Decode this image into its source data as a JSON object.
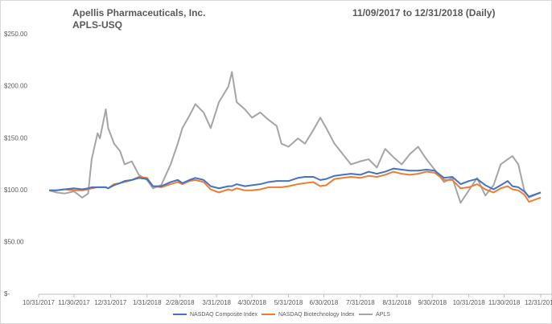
{
  "chart_data": {
    "type": "line",
    "title": "Apellis Pharmaceuticals, Inc.",
    "subtitle": "APLS-USQ",
    "date_range": "11/09/2017 to 12/31/2018 (Daily)",
    "x": [
      "2017-11-09",
      "2017-11-15",
      "2017-11-22",
      "2017-11-30",
      "2017-12-07",
      "2017-12-12",
      "2017-12-15",
      "2017-12-20",
      "2017-12-22",
      "2017-12-27",
      "2017-12-29",
      "2018-01-03",
      "2018-01-08",
      "2018-01-12",
      "2018-01-18",
      "2018-01-24",
      "2018-01-31",
      "2018-02-05",
      "2018-02-12",
      "2018-02-20",
      "2018-02-26",
      "2018-03-02",
      "2018-03-08",
      "2018-03-13",
      "2018-03-20",
      "2018-03-26",
      "2018-04-02",
      "2018-04-10",
      "2018-04-13",
      "2018-04-17",
      "2018-04-24",
      "2018-04-30",
      "2018-05-07",
      "2018-05-14",
      "2018-05-21",
      "2018-05-25",
      "2018-05-31",
      "2018-06-08",
      "2018-06-14",
      "2018-06-21",
      "2018-06-27",
      "2018-07-02",
      "2018-07-09",
      "2018-07-16",
      "2018-07-23",
      "2018-07-31",
      "2018-08-07",
      "2018-08-14",
      "2018-08-21",
      "2018-08-28",
      "2018-09-04",
      "2018-09-11",
      "2018-09-18",
      "2018-09-25",
      "2018-10-02",
      "2018-10-10",
      "2018-10-17",
      "2018-10-24",
      "2018-10-31",
      "2018-11-07",
      "2018-11-14",
      "2018-11-21",
      "2018-11-27",
      "2018-12-03",
      "2018-12-07",
      "2018-12-12",
      "2018-12-17",
      "2018-12-21",
      "2018-12-31"
    ],
    "series": [
      {
        "name": "NASDAQ Composite Index",
        "color": "#4472c4",
        "values": [
          100,
          100,
          101,
          102,
          101,
          102,
          103,
          103,
          103,
          103,
          102,
          105,
          107,
          109,
          110,
          112,
          111,
          104,
          104,
          108,
          110,
          107,
          110,
          112,
          110,
          104,
          102,
          104,
          104,
          106,
          104,
          105,
          106,
          108,
          109,
          109,
          109,
          112,
          113,
          113,
          110,
          111,
          114,
          115,
          116,
          115,
          118,
          116,
          118,
          121,
          120,
          119,
          119,
          120,
          119,
          112,
          113,
          106,
          109,
          111,
          105,
          101,
          105,
          109,
          104,
          103,
          99,
          94,
          98
        ]
      },
      {
        "name": "NASDAQ Biotechnology Index",
        "color": "#ed7d31",
        "values": [
          100,
          100,
          101,
          100,
          100,
          101,
          102,
          103,
          103,
          103,
          102,
          106,
          107,
          108,
          110,
          113,
          112,
          104,
          103,
          106,
          108,
          106,
          109,
          110,
          108,
          101,
          98,
          101,
          100,
          102,
          100,
          100,
          101,
          103,
          103,
          103,
          104,
          106,
          107,
          108,
          104,
          105,
          111,
          112,
          113,
          112,
          114,
          113,
          115,
          118,
          116,
          115,
          116,
          118,
          117,
          110,
          110,
          102,
          103,
          106,
          101,
          98,
          102,
          104,
          101,
          100,
          96,
          89,
          93
        ]
      },
      {
        "name": "APLS",
        "color": "#a5a5a5",
        "values": [
          100,
          98,
          97,
          99,
          93,
          97,
          130,
          155,
          150,
          178,
          160,
          145,
          138,
          125,
          128,
          115,
          110,
          102,
          105,
          125,
          145,
          160,
          172,
          183,
          175,
          160,
          185,
          200,
          214,
          185,
          178,
          170,
          175,
          168,
          162,
          145,
          142,
          150,
          145,
          158,
          170,
          160,
          145,
          135,
          125,
          128,
          130,
          122,
          140,
          132,
          125,
          135,
          142,
          130,
          120,
          108,
          112,
          88,
          100,
          112,
          95,
          105,
          125,
          130,
          133,
          125,
          100,
          93,
          98
        ]
      }
    ],
    "xlim": [
      "2017-10-31",
      "2018-12-31"
    ],
    "xticks": [
      {
        "value": "2017-10-31",
        "label": "10/31/2017"
      },
      {
        "value": "2017-11-30",
        "label": "11/30/2017"
      },
      {
        "value": "2017-12-31",
        "label": "12/31/2017"
      },
      {
        "value": "2018-01-31",
        "label": "1/31/2018"
      },
      {
        "value": "2018-02-28",
        "label": "2/28/2018"
      },
      {
        "value": "2018-03-31",
        "label": "3/31/2018"
      },
      {
        "value": "2018-04-30",
        "label": "4/30/2018"
      },
      {
        "value": "2018-05-31",
        "label": "5/31/2018"
      },
      {
        "value": "2018-06-30",
        "label": "6/30/2018"
      },
      {
        "value": "2018-07-31",
        "label": "7/31/2018"
      },
      {
        "value": "2018-08-31",
        "label": "8/31/2018"
      },
      {
        "value": "2018-09-30",
        "label": "9/30/2018"
      },
      {
        "value": "2018-10-31",
        "label": "10/31/2018"
      },
      {
        "value": "2018-11-30",
        "label": "11/30/2018"
      },
      {
        "value": "2018-12-31",
        "label": "12/31/2018"
      }
    ],
    "ylim": [
      0,
      250
    ],
    "yticks": [
      {
        "value": 0,
        "label": "$-"
      },
      {
        "value": 50,
        "label": "$50.00"
      },
      {
        "value": 100,
        "label": "$100.00"
      },
      {
        "value": 150,
        "label": "$150.00"
      },
      {
        "value": 200,
        "label": "$200.00"
      },
      {
        "value": 250,
        "label": "$250.00"
      }
    ],
    "grid": false,
    "legend": "bottom"
  }
}
